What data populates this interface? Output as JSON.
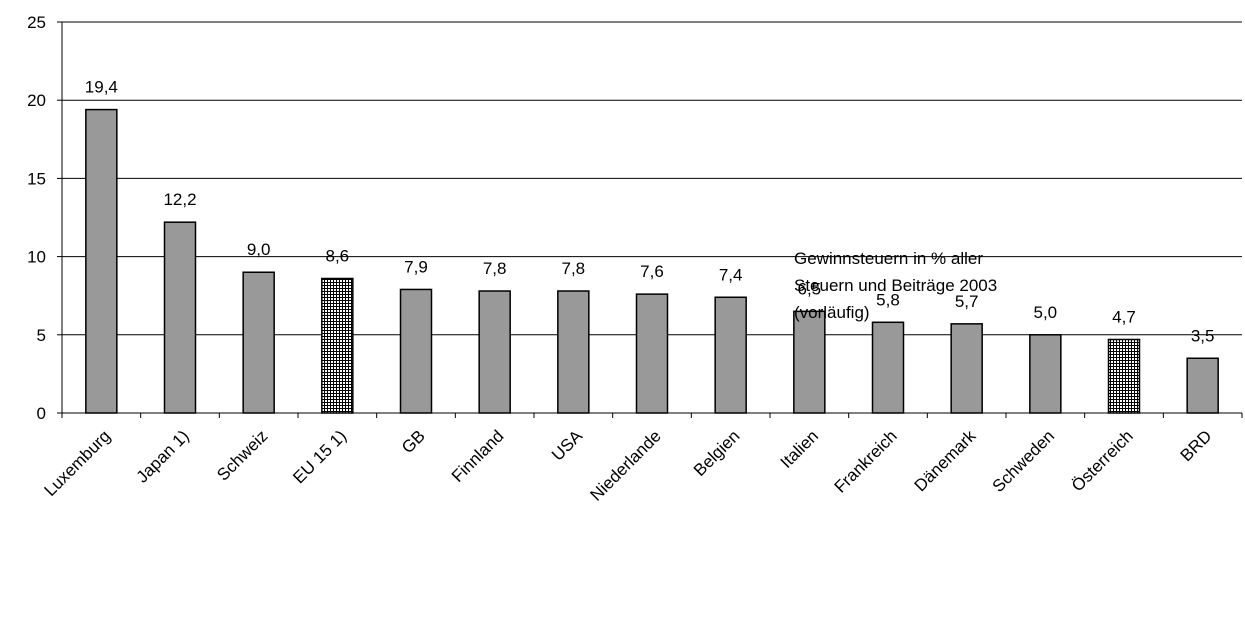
{
  "chart_data": {
    "type": "bar",
    "categories": [
      "Luxemburg",
      "Japan 1)",
      "Schweiz",
      "EU 15 1)",
      "GB",
      "Finnland",
      "USA",
      "Niederlande",
      "Belgien",
      "Italien",
      "Frankreich",
      "Dänemark",
      "Schweden",
      "Österreich",
      "BRD"
    ],
    "values": [
      19.4,
      12.2,
      9.0,
      8.6,
      7.9,
      7.8,
      7.8,
      7.6,
      7.4,
      6.5,
      5.8,
      5.7,
      5.0,
      4.7,
      3.5
    ],
    "value_labels": [
      "19,4",
      "12,2",
      "9,0",
      "8,6",
      "7,9",
      "7,8",
      "7,8",
      "7,6",
      "7,4",
      "6,5",
      "5,8",
      "5,7",
      "5,0",
      "4,7",
      "3,5"
    ],
    "highlight": [
      "EU 15 1)",
      "Österreich"
    ],
    "ylim": [
      0,
      25
    ],
    "yticks": [
      0,
      5,
      10,
      15,
      20,
      25
    ],
    "grid": true,
    "annotation": [
      "Gewinnsteuern in % aller",
      "Steuern und Beiträge 2003",
      "(vorläufig)"
    ],
    "colors": {
      "bar": "#999999",
      "highlight_pattern": "#000000",
      "outline": "#000000",
      "grid": "#000000"
    }
  }
}
